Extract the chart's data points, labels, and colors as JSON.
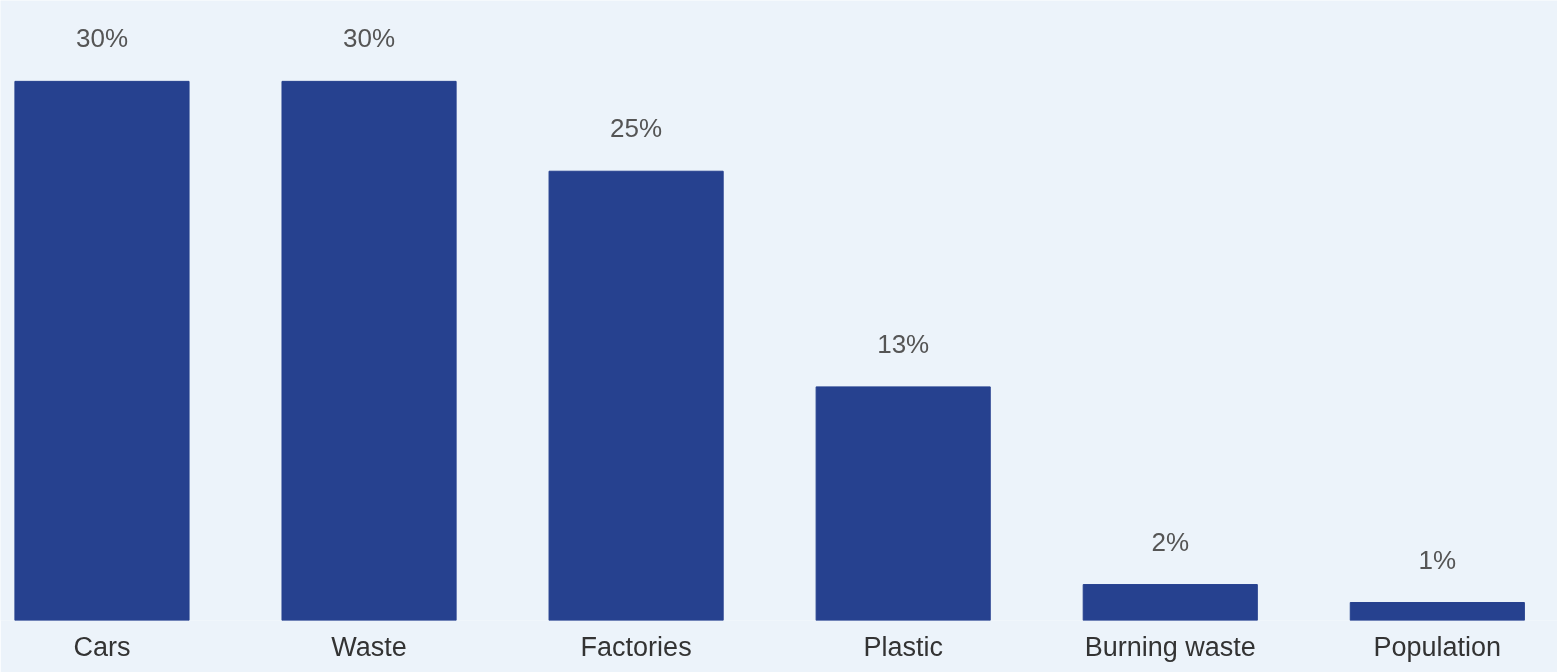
{
  "chart_data": {
    "type": "bar",
    "categories": [
      "Cars",
      "Waste",
      "Factories",
      "Plastic",
      "Burning waste",
      "Population"
    ],
    "values": [
      30,
      30,
      25,
      13,
      2,
      1
    ],
    "value_labels": [
      "30%",
      "30%",
      "25%",
      "13%",
      "2%",
      "1%"
    ],
    "color": "#26418f",
    "grid": false
  }
}
